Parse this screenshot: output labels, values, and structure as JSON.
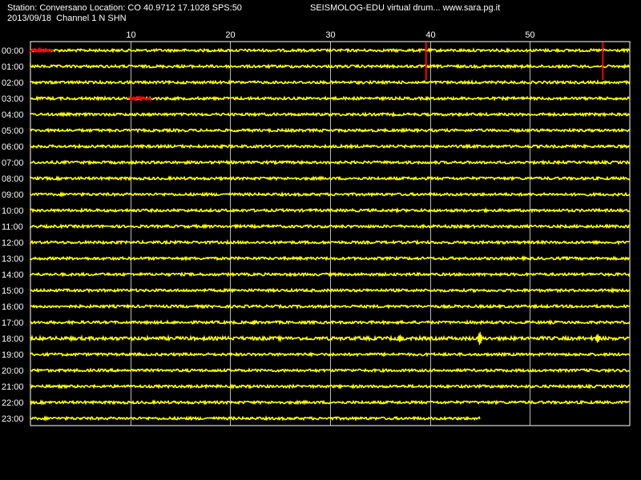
{
  "header": {
    "station_line": "Station: Conversano Location: CO 40.9712 17.1028 SPS:50",
    "title": "SEISMOLOG-EDU virtual drum... www.sara.pg.it",
    "date_line": "2013/09/18  Channel 1 N SHN"
  },
  "colors": {
    "background": "#000000",
    "trace": "#ffff00",
    "event": "#ff0000",
    "grid": "#ffffff",
    "text": "#ffffff"
  },
  "chart_data": {
    "type": "line",
    "title": "SEISMOLOG-EDU virtual drum... www.sara.pg.it",
    "x_unit": "minutes",
    "xlim": [
      0,
      60
    ],
    "x_ticks": [
      10,
      20,
      30,
      40,
      50
    ],
    "x_tick_labels": [
      "10",
      "20",
      "30",
      "40",
      "50"
    ],
    "grid": true,
    "rows": [
      "00:00",
      "01:00",
      "02:00",
      "03:00",
      "04:00",
      "05:00",
      "06:00",
      "07:00",
      "08:00",
      "09:00",
      "10:00",
      "11:00",
      "12:00",
      "13:00",
      "14:00",
      "15:00",
      "16:00",
      "17:00",
      "18:00",
      "19:00",
      "20:00",
      "21:00",
      "22:00",
      "23:00"
    ],
    "row_end_minute": [
      60,
      60,
      60,
      60,
      60,
      60,
      60,
      60,
      60,
      60,
      60,
      60,
      60,
      60,
      60,
      60,
      60,
      60,
      60,
      60,
      60,
      60,
      60,
      45
    ],
    "row_amplitude": [
      1.0,
      1.0,
      1.0,
      1.0,
      1.0,
      1.0,
      1.0,
      1.0,
      1.0,
      1.0,
      1.0,
      1.0,
      1.0,
      1.0,
      1.0,
      1.0,
      1.0,
      1.0,
      1.3,
      1.0,
      1.0,
      1.0,
      1.0,
      1.0
    ],
    "event_segments": [
      {
        "row": "00:00",
        "start": 0.0,
        "end": 2.3
      },
      {
        "row": "03:00",
        "start": 9.9,
        "end": 12.1
      }
    ],
    "event_markers": [
      {
        "row": "00:00",
        "minute": 39.6,
        "spans_rows": 2
      },
      {
        "row": "00:00",
        "minute": 57.3,
        "spans_rows": 2
      }
    ],
    "spikes": [
      {
        "row": "17:00",
        "minute": 22.4,
        "amp": 3
      },
      {
        "row": "18:00",
        "minute": 37.0,
        "amp": 5
      },
      {
        "row": "18:00",
        "minute": 45.0,
        "amp": 9
      },
      {
        "row": "18:00",
        "minute": 56.8,
        "amp": 6
      }
    ]
  }
}
